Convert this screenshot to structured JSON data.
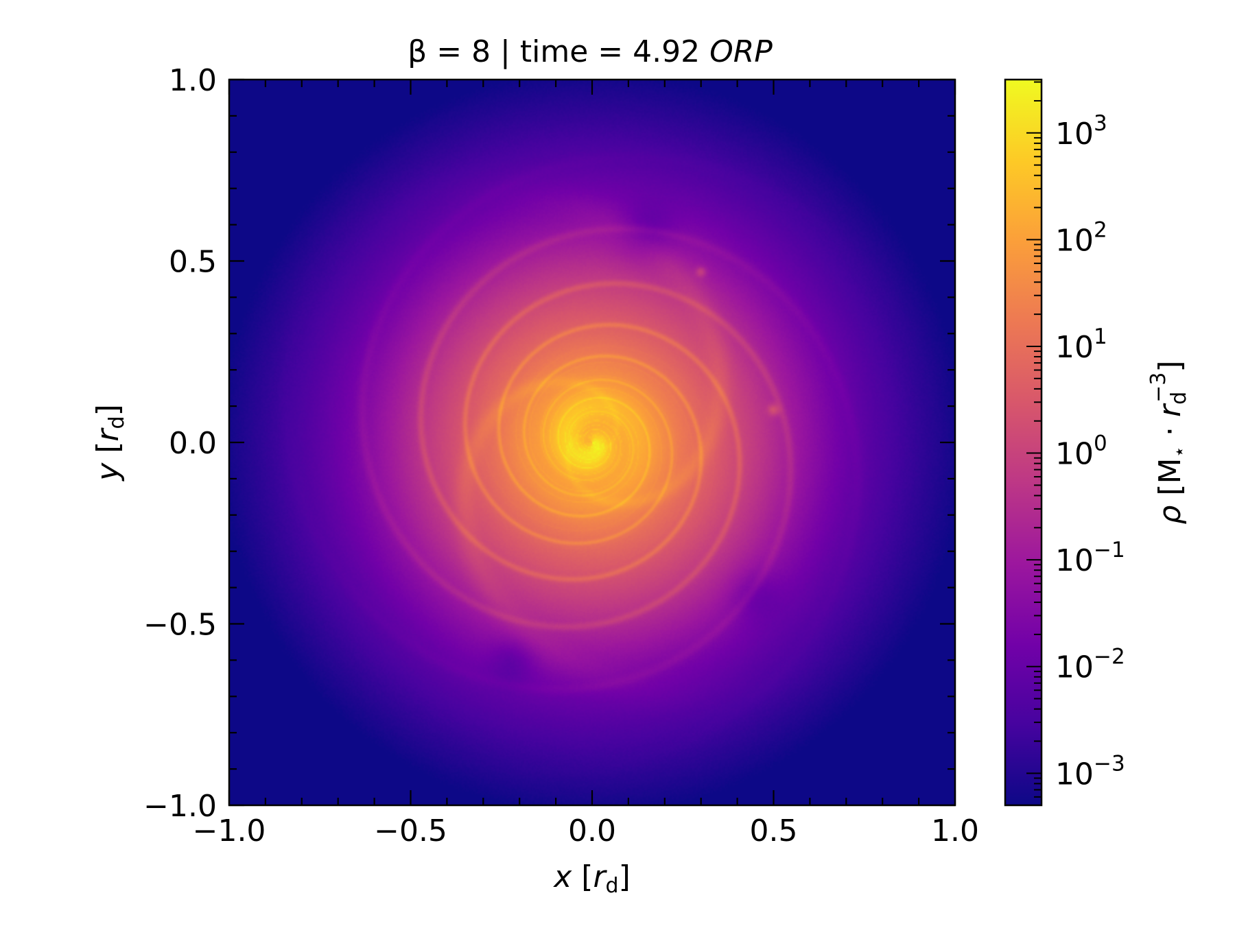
{
  "chart_data": {
    "type": "heatmap",
    "title": {
      "prefix": "β = 8 | time = 4.92 ",
      "suffix": "ORP"
    },
    "xlabel": {
      "var": "x",
      "unit_open": " [",
      "unit_var": "r",
      "unit_sub": "d",
      "unit_close": "]"
    },
    "ylabel": {
      "var": "y",
      "unit_open": " [",
      "unit_var": "r",
      "unit_sub": "d",
      "unit_close": "]"
    },
    "xlim": [
      -1.0,
      1.0
    ],
    "ylim": [
      -1.0,
      1.0
    ],
    "xticks": [
      -1.0,
      -0.5,
      0.0,
      0.5,
      1.0
    ],
    "yticks": [
      -1.0,
      -0.5,
      0.0,
      0.5,
      1.0
    ],
    "xtick_labels": [
      "−1.0",
      "−0.5",
      "0.0",
      "0.5",
      "1.0"
    ],
    "ytick_labels": [
      "−1.0",
      "−0.5",
      "0.0",
      "0.5",
      "1.0"
    ],
    "colormap": "plasma",
    "colorbar": {
      "label": {
        "rho": "ρ",
        "bracket_open": " [M",
        "star": "⋆",
        "dot": " · ",
        "r": "r",
        "sub": "d",
        "sup": "−3",
        "bracket_close": "]"
      },
      "scale": "log",
      "range_exp": [
        -3.3,
        3.5
      ],
      "tick_exponents": [
        -3,
        -2,
        -1,
        0,
        1,
        2,
        3
      ],
      "tick_labels": [
        {
          "base": "10",
          "exp": "−3"
        },
        {
          "base": "10",
          "exp": "−2"
        },
        {
          "base": "10",
          "exp": "−1"
        },
        {
          "base": "10",
          "exp": "0"
        },
        {
          "base": "10",
          "exp": "1"
        },
        {
          "base": "10",
          "exp": "2"
        },
        {
          "base": "10",
          "exp": "3"
        }
      ]
    },
    "field_description": "gas density of a spiral disk, peaked at the origin",
    "colors": {
      "plasma": [
        "#0d0887",
        "#46039f",
        "#7201a8",
        "#9c179e",
        "#bd3786",
        "#d8576b",
        "#ed7953",
        "#fb9f3a",
        "#fdca26",
        "#f0f921"
      ]
    }
  }
}
